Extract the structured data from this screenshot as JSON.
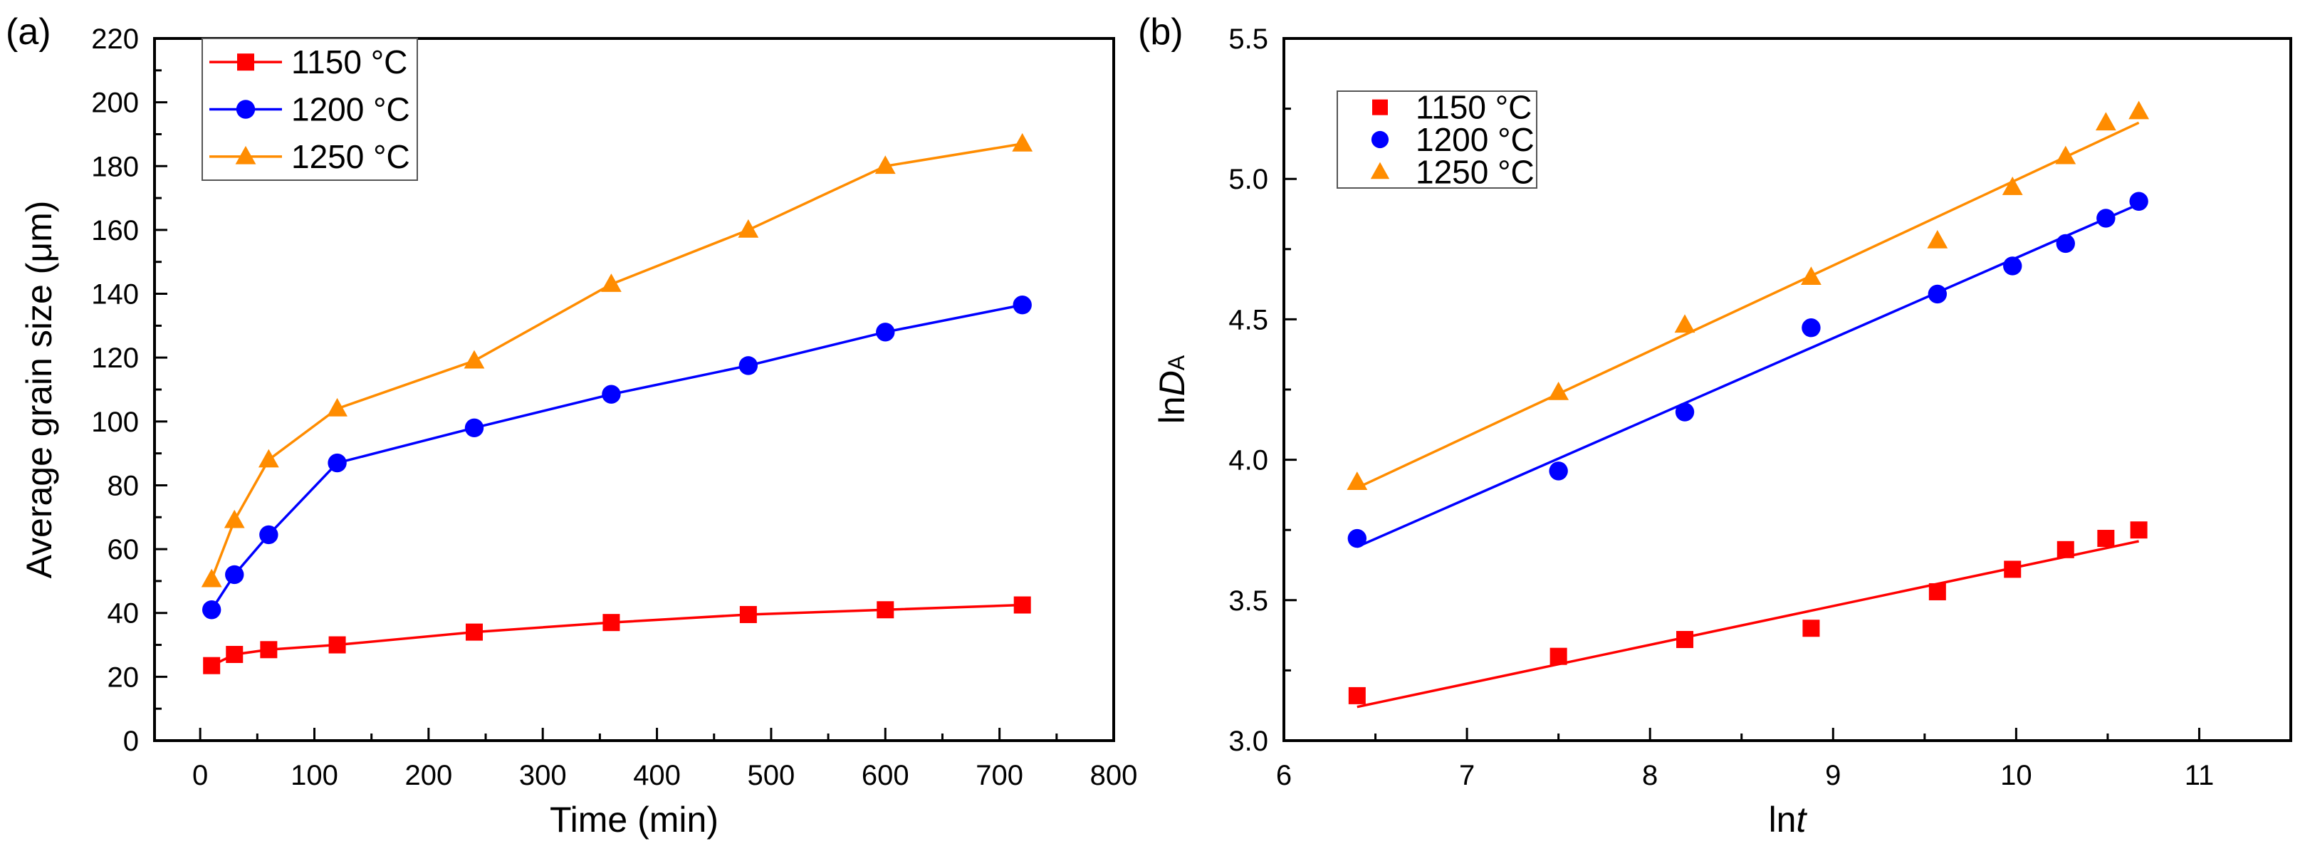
{
  "colors": {
    "1150": "#ff0000",
    "1200": "#0000ff",
    "1250": "#ff8c00"
  },
  "chart_data": [
    {
      "panel_label": "(a)",
      "type": "line",
      "xlabel": "Time (min)",
      "ylabel": "Average grain size (μm)",
      "xlim": [
        -40,
        800
      ],
      "ylim": [
        0,
        220
      ],
      "xticks": [
        0,
        100,
        200,
        300,
        400,
        500,
        600,
        700,
        800
      ],
      "yticks": [
        0,
        20,
        40,
        60,
        80,
        100,
        120,
        140,
        160,
        180,
        200,
        220
      ],
      "xtick_labels": [
        "0",
        "100",
        "200",
        "300",
        "400",
        "500",
        "600",
        "700",
        "800"
      ],
      "ytick_labels": [
        "0",
        "20",
        "40",
        "60",
        "80",
        "100",
        "120",
        "140",
        "160",
        "180",
        "200",
        "220"
      ],
      "legend_position": "top-left",
      "x": [
        10,
        30,
        60,
        120,
        240,
        360,
        480,
        600,
        720
      ],
      "series": [
        {
          "name": "1150 °C",
          "marker": "square",
          "color": "#ff0000",
          "values": [
            23.5,
            27,
            28.5,
            30,
            34,
            37,
            39.5,
            41,
            42.5
          ]
        },
        {
          "name": "1200 °C",
          "marker": "circle",
          "color": "#0000ff",
          "values": [
            41,
            52,
            64.5,
            87,
            98,
            108.5,
            117.5,
            128,
            136.5
          ]
        },
        {
          "name": "1250 °C",
          "marker": "triangle",
          "color": "#ff8c00",
          "values": [
            50.5,
            69,
            88,
            104,
            119,
            143,
            160,
            180,
            187
          ]
        }
      ]
    },
    {
      "panel_label": "(b)",
      "type": "scatter",
      "xlabel_main": "ln",
      "xlabel_italic": "t",
      "ylabel_main": "ln",
      "ylabel_italic": "D",
      "ylabel_sub": "A",
      "xlim": [
        6,
        11.5
      ],
      "ylim": [
        3.0,
        5.5
      ],
      "xticks": [
        6,
        7,
        8,
        9,
        10,
        11
      ],
      "yticks": [
        3.0,
        3.5,
        4.0,
        4.5,
        5.0,
        5.5
      ],
      "xtick_labels": [
        "6",
        "7",
        "8",
        "9",
        "10",
        "11"
      ],
      "ytick_labels": [
        "3.0",
        "3.5",
        "4.0",
        "4.5",
        "5.0",
        "5.5"
      ],
      "legend_position": "top-left",
      "x": [
        6.4,
        7.5,
        8.19,
        8.88,
        9.57,
        9.98,
        10.27,
        10.49,
        10.67
      ],
      "series": [
        {
          "name": "1150 °C",
          "marker": "square",
          "color": "#ff0000",
          "values": [
            3.16,
            3.3,
            3.36,
            3.4,
            3.53,
            3.61,
            3.68,
            3.72,
            3.75
          ],
          "fit": [
            [
              6.4,
              3.12
            ],
            [
              10.67,
              3.71
            ]
          ]
        },
        {
          "name": "1200 °C",
          "marker": "circle",
          "color": "#0000ff",
          "values": [
            3.72,
            3.96,
            4.17,
            4.47,
            4.59,
            4.69,
            4.77,
            4.86,
            4.92
          ],
          "fit": [
            [
              6.4,
              3.69
            ],
            [
              10.67,
              4.91
            ]
          ]
        },
        {
          "name": "1250 °C",
          "marker": "triangle",
          "color": "#ff8c00",
          "values": [
            3.92,
            4.24,
            4.48,
            4.65,
            4.78,
            4.97,
            5.08,
            5.2,
            5.24
          ],
          "fit": [
            [
              6.4,
              3.9
            ],
            [
              10.67,
              5.2
            ]
          ]
        }
      ]
    }
  ]
}
